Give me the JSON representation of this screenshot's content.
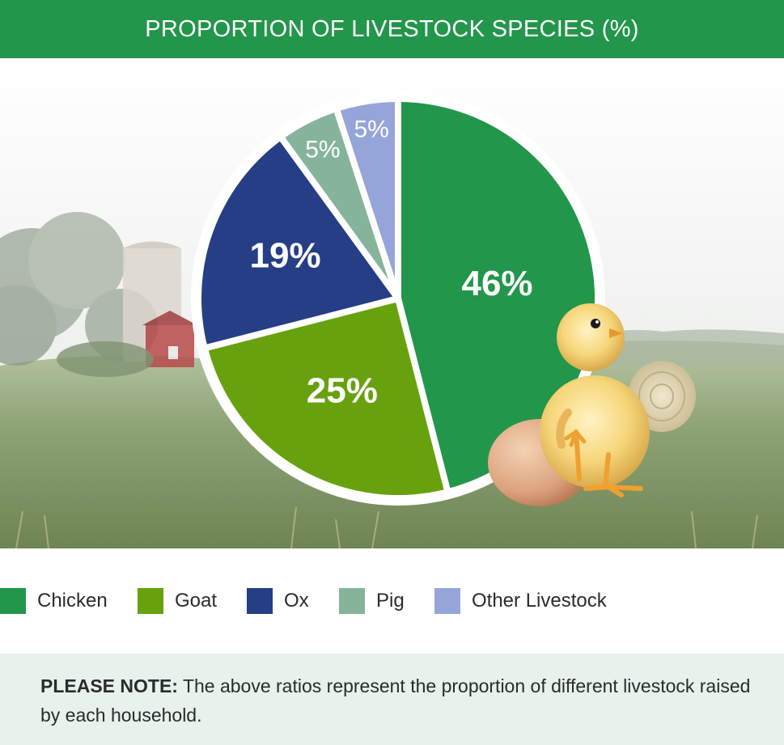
{
  "header": {
    "title": "PROPORTION OF LIVESTOCK SPECIES (%)"
  },
  "chart_data": {
    "type": "pie",
    "title": "PROPORTION OF LIVESTOCK SPECIES (%)",
    "categories": [
      "Chicken",
      "Goat",
      "Ox",
      "Pig",
      "Other Livestock"
    ],
    "values": [
      46,
      25,
      19,
      5,
      5
    ],
    "labels": [
      "46%",
      "25%",
      "19%",
      "5%",
      "5%"
    ],
    "colors": [
      "#22964a",
      "#67a20e",
      "#253e85",
      "#86b49b",
      "#95a5d9"
    ],
    "legend_position": "bottom"
  },
  "legend": [
    {
      "label": "Chicken",
      "color": "#22964a"
    },
    {
      "label": "Goat",
      "color": "#67a20e"
    },
    {
      "label": "Ox",
      "color": "#253e85"
    },
    {
      "label": "Pig",
      "color": "#86b49b"
    },
    {
      "label": "Other Livestock",
      "color": "#95a5d9"
    }
  ],
  "note": {
    "prefix": "PLEASE NOTE:",
    "text": " The above ratios represent the proportion of different livestock raised by each household."
  }
}
